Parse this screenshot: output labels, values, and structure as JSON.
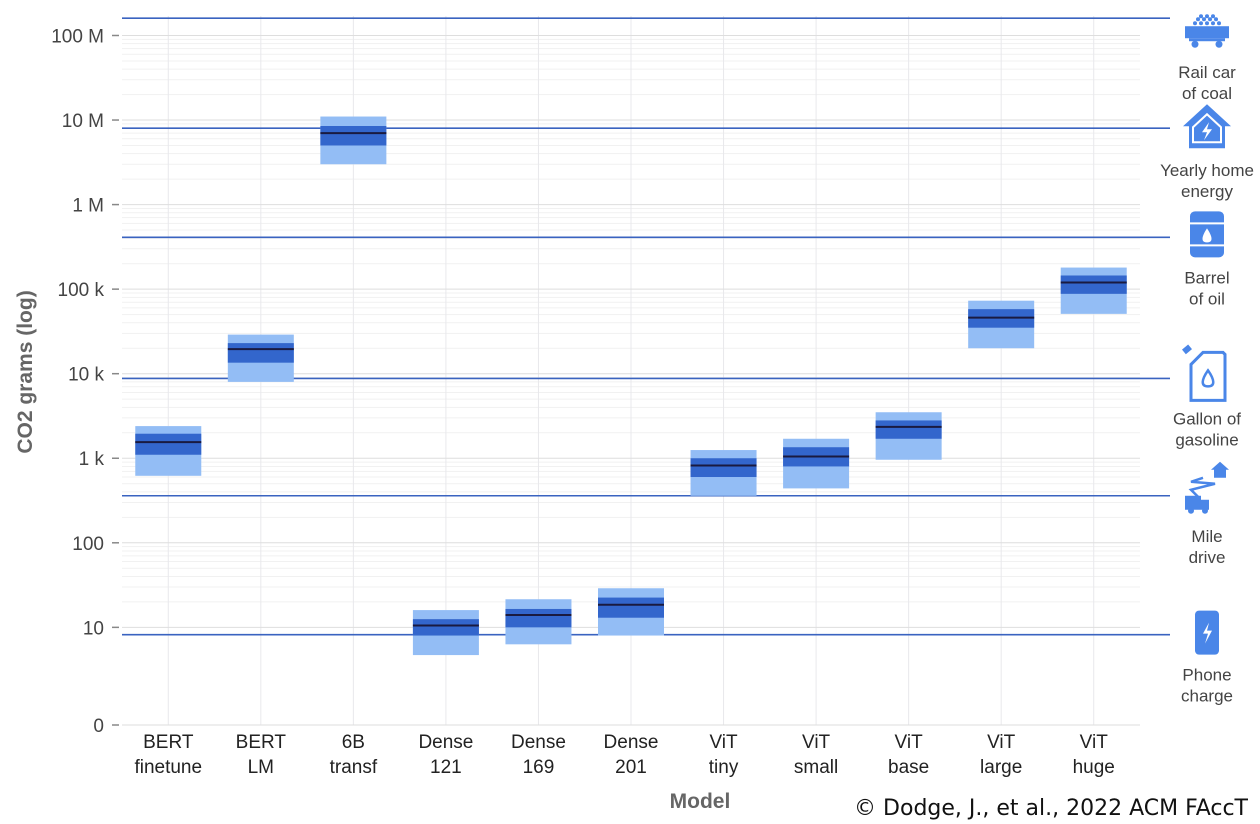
{
  "chart_data": {
    "type": "box",
    "xlabel": "Model",
    "ylabel": "CO2 grams (log)",
    "yscale": "log",
    "ylim": [
      0.7,
      170000000
    ],
    "yticks": [
      {
        "value": 100000000,
        "label": "100 M"
      },
      {
        "value": 10000000,
        "label": "10 M"
      },
      {
        "value": 1000000,
        "label": "1 M"
      },
      {
        "value": 100000,
        "label": "100 k"
      },
      {
        "value": 10000,
        "label": "10 k"
      },
      {
        "value": 1000,
        "label": "1 k"
      },
      {
        "value": 100,
        "label": "100"
      },
      {
        "value": 10,
        "label": "10"
      },
      {
        "value": 0.7,
        "label": "0"
      }
    ],
    "grid": true,
    "models": [
      {
        "line1": "BERT",
        "line2": "finetune",
        "min": 620,
        "q1": 1100,
        "median": 1550,
        "q3": 1950,
        "max": 2400
      },
      {
        "line1": "BERT",
        "line2": "LM",
        "min": 8000,
        "q1": 13500,
        "median": 19500,
        "q3": 23000,
        "max": 29000
      },
      {
        "line1": "6B",
        "line2": "transf",
        "min": 3000000,
        "q1": 5000000,
        "median": 7000000,
        "q3": 8500000,
        "max": 11000000
      },
      {
        "line1": "Dense",
        "line2": "121",
        "min": 4.7,
        "q1": 8,
        "median": 10.5,
        "q3": 12.5,
        "max": 16
      },
      {
        "line1": "Dense",
        "line2": "169",
        "min": 6.3,
        "q1": 10,
        "median": 14,
        "q3": 16.5,
        "max": 21.5
      },
      {
        "line1": "Dense",
        "line2": "201",
        "min": 8,
        "q1": 13,
        "median": 18.5,
        "q3": 22.5,
        "max": 29
      },
      {
        "line1": "ViT",
        "line2": "tiny",
        "min": 360,
        "q1": 600,
        "median": 820,
        "q3": 1000,
        "max": 1250
      },
      {
        "line1": "ViT",
        "line2": "small",
        "min": 440,
        "q1": 800,
        "median": 1050,
        "q3": 1350,
        "max": 1700
      },
      {
        "line1": "ViT",
        "line2": "base",
        "min": 960,
        "q1": 1700,
        "median": 2350,
        "q3": 2800,
        "max": 3500
      },
      {
        "line1": "ViT",
        "line2": "large",
        "min": 20000,
        "q1": 35000,
        "median": 46000,
        "q3": 58000,
        "max": 73000
      },
      {
        "line1": "ViT",
        "line2": "huge",
        "min": 51000,
        "q1": 88000,
        "median": 120000,
        "q3": 145000,
        "max": 180000
      }
    ],
    "reference_lines": [
      {
        "value": 8.2,
        "line1": "Phone",
        "line2": "charge",
        "icon": "phone-icon"
      },
      {
        "value": 360,
        "line1": "Mile",
        "line2": "drive",
        "icon": "truck-house-icon"
      },
      {
        "value": 8800,
        "line1": "Gallon of",
        "line2": "gasoline",
        "icon": "gas-can-icon"
      },
      {
        "value": 410000,
        "line1": "Barrel",
        "line2": "of oil",
        "icon": "oil-barrel-icon"
      },
      {
        "value": 8000000,
        "line1": "Yearly home",
        "line2": "energy",
        "icon": "home-energy-icon"
      },
      {
        "value": 160000000,
        "line1": "Rail car",
        "line2": "of coal",
        "icon": "coal-rail-car-icon"
      }
    ],
    "colors": {
      "whisker_range": "#93bdf5",
      "iqr": "#3366cc",
      "median": "#1a1a40",
      "reference_line": "#3a63c0",
      "icon": "#4a86e8"
    }
  },
  "credit": "© Dodge, J., et al., 2022 ACM FAccT"
}
